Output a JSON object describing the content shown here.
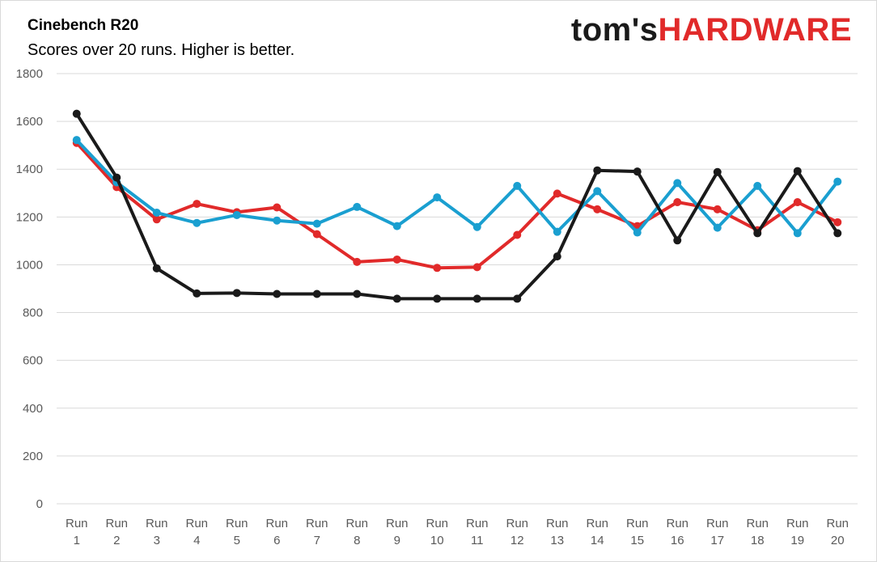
{
  "header": {
    "title": "Cinebench R20",
    "subtitle": "Scores over 20 runs. Higher is better.",
    "brand_part1": "tom's",
    "brand_part2": "HARDWARE"
  },
  "colors": {
    "brand_red": "#e12a2a",
    "brand_dark": "#1a1a1a"
  },
  "chart_data": {
    "type": "line",
    "title": "Cinebench R20",
    "subtitle": "Scores over 20 runs. Higher is better.",
    "xlabel": "",
    "ylabel": "",
    "categories": [
      "Run 1",
      "Run 2",
      "Run 3",
      "Run 4",
      "Run 5",
      "Run 6",
      "Run 7",
      "Run 8",
      "Run 9",
      "Run 10",
      "Run 11",
      "Run 12",
      "Run 13",
      "Run 14",
      "Run 15",
      "Run 16",
      "Run 17",
      "Run 18",
      "Run 19",
      "Run 20"
    ],
    "ylim": [
      0,
      1800
    ],
    "yticks": [
      0,
      200,
      400,
      600,
      800,
      1000,
      1200,
      1400,
      1600,
      1800
    ],
    "grid": true,
    "legend": "none",
    "series": [
      {
        "color": "#e12a2a",
        "values": [
          1510,
          1325,
          1190,
          1255,
          1220,
          1240,
          1128,
          1012,
          1022,
          987,
          990,
          1125,
          1298,
          1232,
          1162,
          1262,
          1232,
          1145,
          1262,
          1178
        ]
      },
      {
        "color": "#1a9fd0",
        "values": [
          1522,
          1345,
          1218,
          1175,
          1208,
          1185,
          1172,
          1242,
          1162,
          1282,
          1158,
          1330,
          1138,
          1308,
          1135,
          1342,
          1155,
          1330,
          1132,
          1348
        ]
      },
      {
        "color": "#1a1a1a",
        "values": [
          1632,
          1365,
          985,
          880,
          882,
          878,
          878,
          878,
          858,
          858,
          858,
          858,
          1035,
          1395,
          1390,
          1102,
          1388,
          1132,
          1392,
          1132
        ]
      }
    ]
  }
}
